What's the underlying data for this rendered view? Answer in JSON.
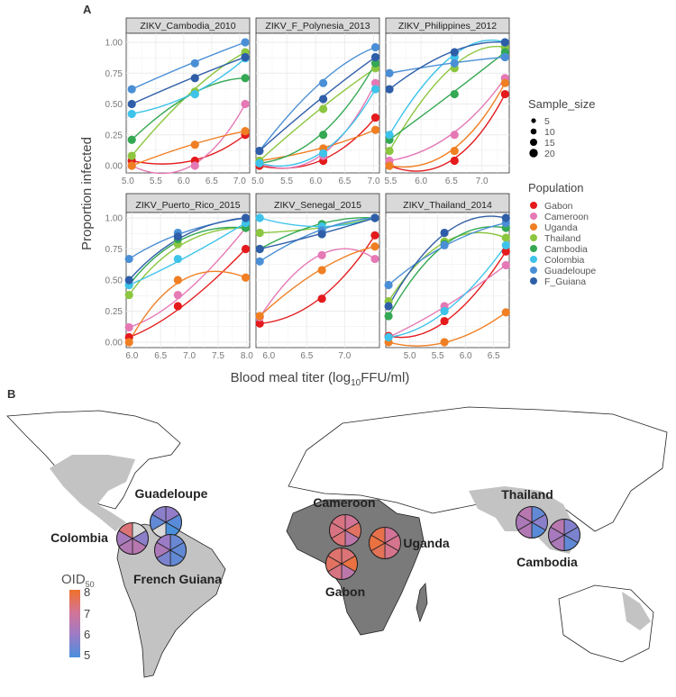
{
  "panel_labels": {
    "a": "A",
    "b": "B"
  },
  "chart_data": {
    "type": "scatter",
    "ylabel": "Proportion infected",
    "xlabel": {
      "pre": "Blood meal titer (log",
      "sub": "10",
      "post": "FFU/ml)"
    },
    "ylim": [
      0,
      1
    ],
    "y_ticks": [
      "0.00",
      "0.25",
      "0.50",
      "0.75",
      "1.00"
    ],
    "grid": true,
    "populations": [
      "Gabon",
      "Cameroon",
      "Uganda",
      "Thailand",
      "Cambodia",
      "Colombia",
      "Guadeloupe",
      "F_Guiana"
    ],
    "colors": {
      "Gabon": "#e41a1c",
      "Cameroon": "#e579b6",
      "Uganda": "#f07f23",
      "Thailand": "#8cc63f",
      "Cambodia": "#34a853",
      "Colombia": "#3ec3ea",
      "Guadeloupe": "#4a8fd6",
      "F_Guiana": "#2f5ea8"
    },
    "panels": [
      {
        "title": "ZIKV_Cambodia_2010",
        "xlim": [
          4.97,
          7.18
        ],
        "x_ticks": [
          "5.0",
          "5.5",
          "6.0",
          "6.5",
          "7.0"
        ],
        "x": [
          5.07,
          6.2,
          7.1
        ],
        "series": {
          "Gabon": [
            0.04,
            0.04,
            0.25
          ],
          "Cameroon": [
            0,
            0,
            0.5
          ],
          "Uganda": [
            0,
            0.17,
            0.28
          ],
          "Thailand": [
            0.08,
            0.6,
            0.92
          ],
          "Cambodia": [
            0.21,
            0.58,
            0.71
          ],
          "Colombia": [
            0.42,
            0.58,
            0.87
          ],
          "Guadeloupe": [
            0.62,
            0.83,
            1.0
          ],
          "F_Guiana": [
            0.5,
            0.71,
            0.88
          ]
        }
      },
      {
        "title": "ZIKV_F_Polynesia_2013",
        "xlim": [
          4.97,
          7.1
        ],
        "x_ticks": [
          "5.0",
          "5.5",
          "6.0",
          "6.5",
          "7.0"
        ],
        "x": [
          5.03,
          6.13,
          7.03
        ],
        "series": {
          "Gabon": [
            0,
            0.04,
            0.39
          ],
          "Cameroon": [
            0.02,
            0.08,
            0.67
          ],
          "Uganda": [
            0.04,
            0.14,
            0.29
          ],
          "Thailand": [
            0.04,
            0.46,
            0.79
          ],
          "Cambodia": [
            0.02,
            0.25,
            0.83
          ],
          "Colombia": [
            0.02,
            0.1,
            0.62
          ],
          "Guadeloupe": [
            0.12,
            0.67,
            0.96
          ],
          "F_Guiana": [
            0.12,
            0.54,
            0.88
          ]
        }
      },
      {
        "title": "ZIKV_Philippines_2012",
        "xlim": [
          5.42,
          7.45
        ],
        "x_ticks": [
          "5.5",
          "6.0",
          "6.5",
          "7.0"
        ],
        "x": [
          5.48,
          6.55,
          7.38
        ],
        "series": {
          "Gabon": [
            0,
            0.04,
            0.58
          ],
          "Cameroon": [
            0.04,
            0.25,
            0.71
          ],
          "Uganda": [
            0,
            0.12,
            0.67
          ],
          "Thailand": [
            0.12,
            0.79,
            0.96
          ],
          "Cambodia": [
            0.21,
            0.58,
            0.92
          ],
          "Colombia": [
            0.25,
            0.88,
            1.0
          ],
          "Guadeloupe": [
            0.75,
            0.83,
            0.88
          ],
          "F_Guiana": [
            0.62,
            0.92,
            1.0
          ]
        }
      },
      {
        "title": "ZIKV_Puerto_Rico_2015",
        "xlim": [
          5.9,
          8.05
        ],
        "x_ticks": [
          "6.0",
          "6.5",
          "7.0",
          "7.5",
          "8.0"
        ],
        "x": [
          5.95,
          6.8,
          7.98
        ],
        "series": {
          "Gabon": [
            0.04,
            0.29,
            0.75
          ],
          "Cameroon": [
            0.12,
            0.38,
            0.92
          ],
          "Uganda": [
            0,
            0.5,
            0.52
          ],
          "Thailand": [
            0.38,
            0.79,
            0.92
          ],
          "Cambodia": [
            0.46,
            0.83,
            0.92
          ],
          "Colombia": [
            0.46,
            0.67,
            0.96
          ],
          "Guadeloupe": [
            0.67,
            0.88,
            1.0
          ],
          "F_Guiana": [
            0.5,
            0.85,
            1.0
          ]
        }
      },
      {
        "title": "ZIKV_Senegal_2015",
        "xlim": [
          5.83,
          7.46
        ],
        "x_ticks": [
          "6.0",
          "6.5",
          "7.0"
        ],
        "x": [
          5.88,
          6.7,
          7.4
        ],
        "series": {
          "Gabon": [
            0.15,
            0.35,
            0.86
          ],
          "Cameroon": [
            0.2,
            0.7,
            0.67
          ],
          "Uganda": [
            0.21,
            0.58,
            0.77
          ],
          "Thailand": [
            0.88,
            0.92,
            1.0
          ],
          "Cambodia": [
            0.75,
            0.95,
            1.0
          ],
          "Colombia": [
            1.0,
            0.93,
            1.0
          ],
          "Guadeloupe": [
            0.65,
            0.9,
            1.0
          ],
          "F_Guiana": [
            0.75,
            0.87,
            1.0
          ]
        }
      },
      {
        "title": "ZIKV_Thailand_2014",
        "xlim": [
          4.57,
          6.78
        ],
        "x_ticks": [
          "5.0",
          "5.5",
          "6.0",
          "6.5"
        ],
        "x": [
          4.62,
          5.62,
          6.72
        ],
        "series": {
          "Gabon": [
            0.05,
            0.17,
            0.73
          ],
          "Cameroon": [
            0.04,
            0.29,
            0.62
          ],
          "Uganda": [
            0,
            0,
            0.24
          ],
          "Thailand": [
            0.33,
            0.81,
            0.84
          ],
          "Cambodia": [
            0.21,
            0.79,
            0.92
          ],
          "Colombia": [
            0.04,
            0.25,
            0.78
          ],
          "Guadeloupe": [
            0.46,
            0.78,
            0.96
          ],
          "F_Guiana": [
            0.29,
            0.88,
            1.0
          ]
        }
      }
    ],
    "legend_size": {
      "title": "Sample_size",
      "values": [
        "5",
        "10",
        "15",
        "20"
      ]
    },
    "legend_population": {
      "title": "Population"
    },
    "legend_placement": "right"
  },
  "map": {
    "oid_legend": {
      "title": "OID",
      "sub": "50",
      "ticks": [
        "8",
        "7",
        "6",
        "5"
      ],
      "range": [
        5,
        8
      ],
      "colors": [
        "#4a8fdc",
        "#9b7bc6",
        "#d27498",
        "#f0702a"
      ]
    },
    "na_color": "#d9d9d9",
    "sites": [
      {
        "name": "Colombia",
        "oid": [
          null,
          5.8,
          6.5,
          6.4,
          6.2,
          7.3
        ]
      },
      {
        "name": "Guadeloupe",
        "oid": [
          5.9,
          5.2,
          5.0,
          null,
          5.3,
          5.8
        ]
      },
      {
        "name": "French Guiana",
        "oid": [
          5.4,
          5.3,
          5.3,
          5.6,
          6.3,
          6.0
        ]
      },
      {
        "name": "Cameroon",
        "oid": [
          7.0,
          7.5,
          6.6,
          7.3,
          7.2,
          7.2
        ]
      },
      {
        "name": "Uganda",
        "oid": [
          7.0,
          7.1,
          7.1,
          7.6,
          7.8,
          7.7
        ]
      },
      {
        "name": "Gabon",
        "oid": [
          7.3,
          7.8,
          6.6,
          7.2,
          7.5,
          7.4
        ]
      },
      {
        "name": "Thailand",
        "oid": [
          5.3,
          5.8,
          5.2,
          6.4,
          6.3,
          6.5
        ]
      },
      {
        "name": "Cambodia",
        "oid": [
          5.7,
          5.6,
          5.3,
          6.3,
          6.2,
          6.5
        ]
      }
    ]
  }
}
